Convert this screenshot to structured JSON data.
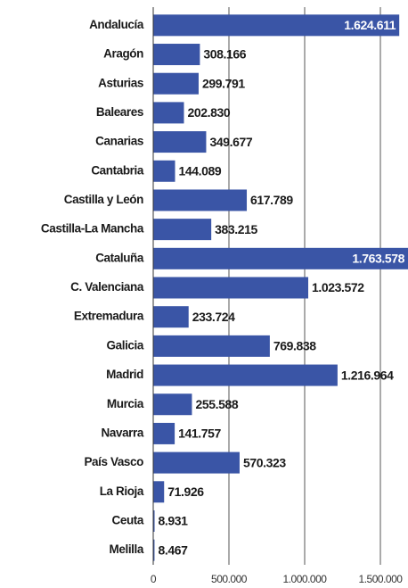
{
  "chart_data": {
    "type": "bar",
    "orientation": "horizontal",
    "color": "#3a55a6",
    "grid": true,
    "categories": [
      "Andalucía",
      "Aragón",
      "Asturias",
      "Baleares",
      "Canarias",
      "Cantabria",
      "Castilla y León",
      "Castilla-La Mancha",
      "Cataluña",
      "C. Valenciana",
      "Extremadura",
      "Galicia",
      "Madrid",
      "Murcia",
      "Navarra",
      "País Vasco",
      "La Rioja",
      "Ceuta",
      "Melilla"
    ],
    "values": [
      1624611,
      308166,
      299791,
      202830,
      349677,
      144089,
      617789,
      383215,
      1763578,
      1023572,
      233724,
      769838,
      1216964,
      255588,
      141757,
      570323,
      71926,
      8931,
      8467
    ],
    "value_labels": [
      "1.624.611",
      "308.166",
      "299.791",
      "202.830",
      "349.677",
      "144.089",
      "617.789",
      "383.215",
      "1.763.578",
      "1.023.572",
      "233.724",
      "769.838",
      "1.216.964",
      "255.588",
      "141.757",
      "570.323",
      "71.926",
      "8.931",
      "8.467"
    ],
    "xlim": [
      0,
      1700000
    ],
    "xticks": [
      0,
      {
        "value": 500000,
        "label": "500.000"
      },
      {
        "value": 1000000,
        "label": "1.000.000"
      },
      {
        "value": 1500000,
        "label": "1.500.000"
      }
    ]
  }
}
